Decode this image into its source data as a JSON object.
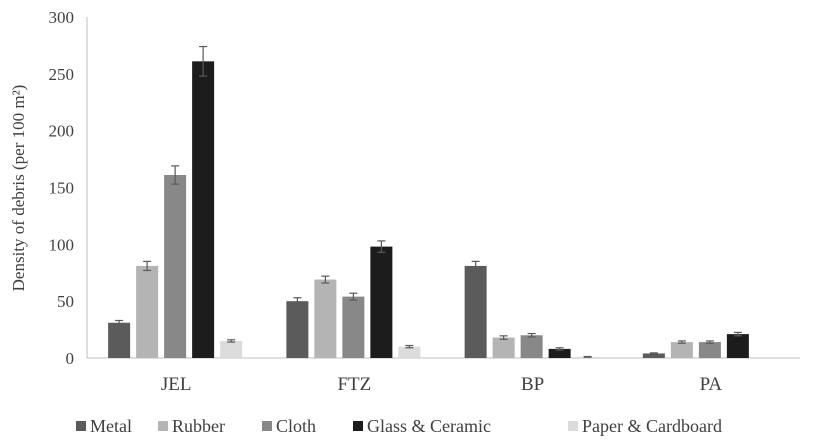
{
  "chart_data": {
    "type": "bar",
    "ylabel": "Density of debris (per 100 m²)",
    "ylim": [
      0,
      300
    ],
    "yticks": [
      0,
      50,
      100,
      150,
      200,
      250,
      300
    ],
    "categories": [
      "JEL",
      "FTZ",
      "BP",
      "PA"
    ],
    "legend_position": "bottom",
    "grid": false,
    "series": [
      {
        "name": "Metal",
        "color": "#5b5b5b",
        "values": [
          31,
          50,
          81,
          4
        ],
        "errors": [
          2,
          3,
          4,
          0.5
        ]
      },
      {
        "name": "Rubber",
        "color": "#b4b4b4",
        "values": [
          81,
          69,
          18,
          14
        ],
        "errors": [
          4,
          3,
          1.5,
          1
        ]
      },
      {
        "name": "Cloth",
        "color": "#888888",
        "values": [
          161,
          54,
          20,
          14
        ],
        "errors": [
          8,
          3,
          1.5,
          1
        ]
      },
      {
        "name": "Glass & Ceramic",
        "color": "#1c1c1c",
        "values": [
          261,
          98,
          8,
          21
        ],
        "errors": [
          13,
          5,
          1,
          1.5
        ]
      },
      {
        "name": "Paper & Cardboard",
        "color": "#dcdcdc",
        "values": [
          15,
          10,
          1,
          0
        ],
        "errors": [
          1,
          1,
          0.3,
          0
        ]
      }
    ]
  }
}
